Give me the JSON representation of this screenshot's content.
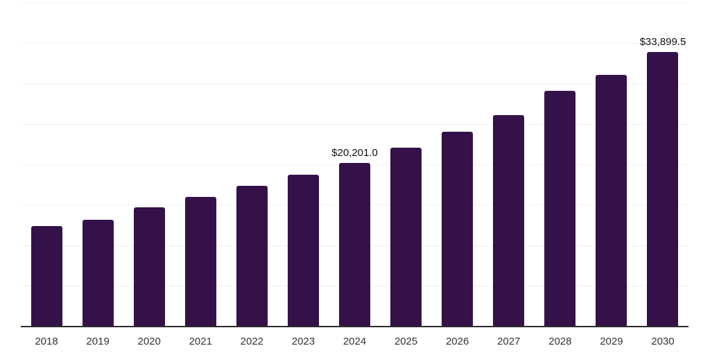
{
  "chart": {
    "background_color": "#ffffff",
    "bar_color": "#341249",
    "gridline_color": "#f1f1f1",
    "axis_line_color": "#2b2b2b",
    "data_label_color": "#111111",
    "tick_label_color": "#333333"
  },
  "chart_data": {
    "type": "bar",
    "title": "",
    "xlabel": "",
    "ylabel": "",
    "categories": [
      "2018",
      "2019",
      "2020",
      "2021",
      "2022",
      "2023",
      "2024",
      "2025",
      "2026",
      "2027",
      "2028",
      "2029",
      "2030"
    ],
    "values": [
      12400,
      13100,
      14700,
      16000,
      17300,
      18700,
      20201.0,
      22100,
      24000,
      26100,
      29100,
      31100,
      33899.5
    ],
    "data_labels": [
      "",
      "",
      "",
      "",
      "",
      "",
      "$20,201.0",
      "",
      "",
      "",
      "",
      "",
      "$33,899.5"
    ],
    "ylim": [
      0,
      40000
    ],
    "gridline_step": 5000,
    "grid": true,
    "legend": false,
    "y_axis_labels_visible": false
  }
}
